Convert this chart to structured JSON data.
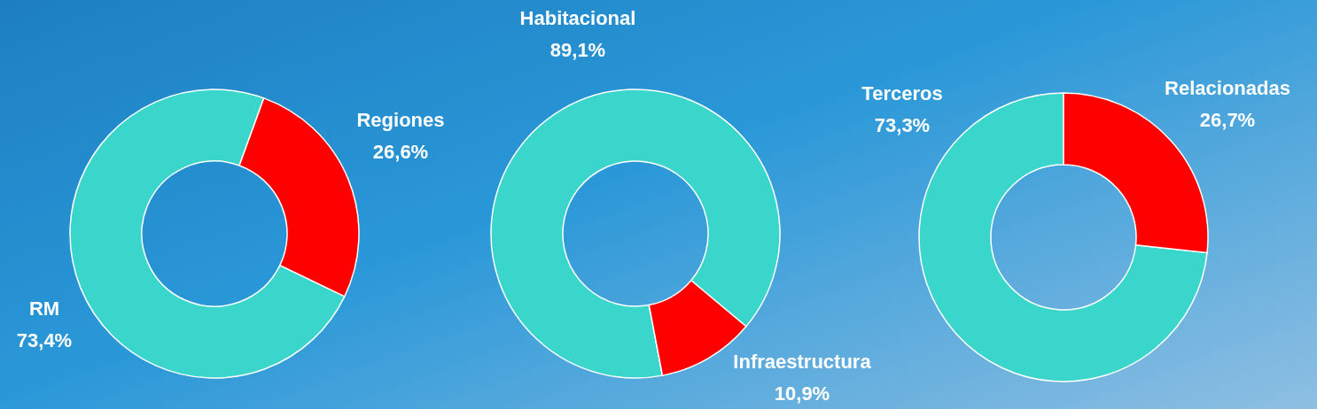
{
  "chart_data": [
    {
      "type": "donut",
      "categories": [
        "RM",
        "Regiones"
      ],
      "values": [
        73.4,
        26.6
      ],
      "value_labels": [
        "73,4%",
        "26,6%"
      ],
      "colors": [
        "#3ad6cc",
        "#ff0000"
      ]
    },
    {
      "type": "donut",
      "categories": [
        "Habitacional",
        "Infraestructura"
      ],
      "values": [
        89.1,
        10.9
      ],
      "value_labels": [
        "89,1%",
        "10,9%"
      ],
      "colors": [
        "#3ad6cc",
        "#ff0000"
      ]
    },
    {
      "type": "donut",
      "categories": [
        "Terceros",
        "Relacionadas"
      ],
      "values": [
        73.3,
        26.7
      ],
      "value_labels": [
        "73,3%",
        "26,7%"
      ],
      "colors": [
        "#3ad6cc",
        "#ff0000"
      ]
    }
  ]
}
